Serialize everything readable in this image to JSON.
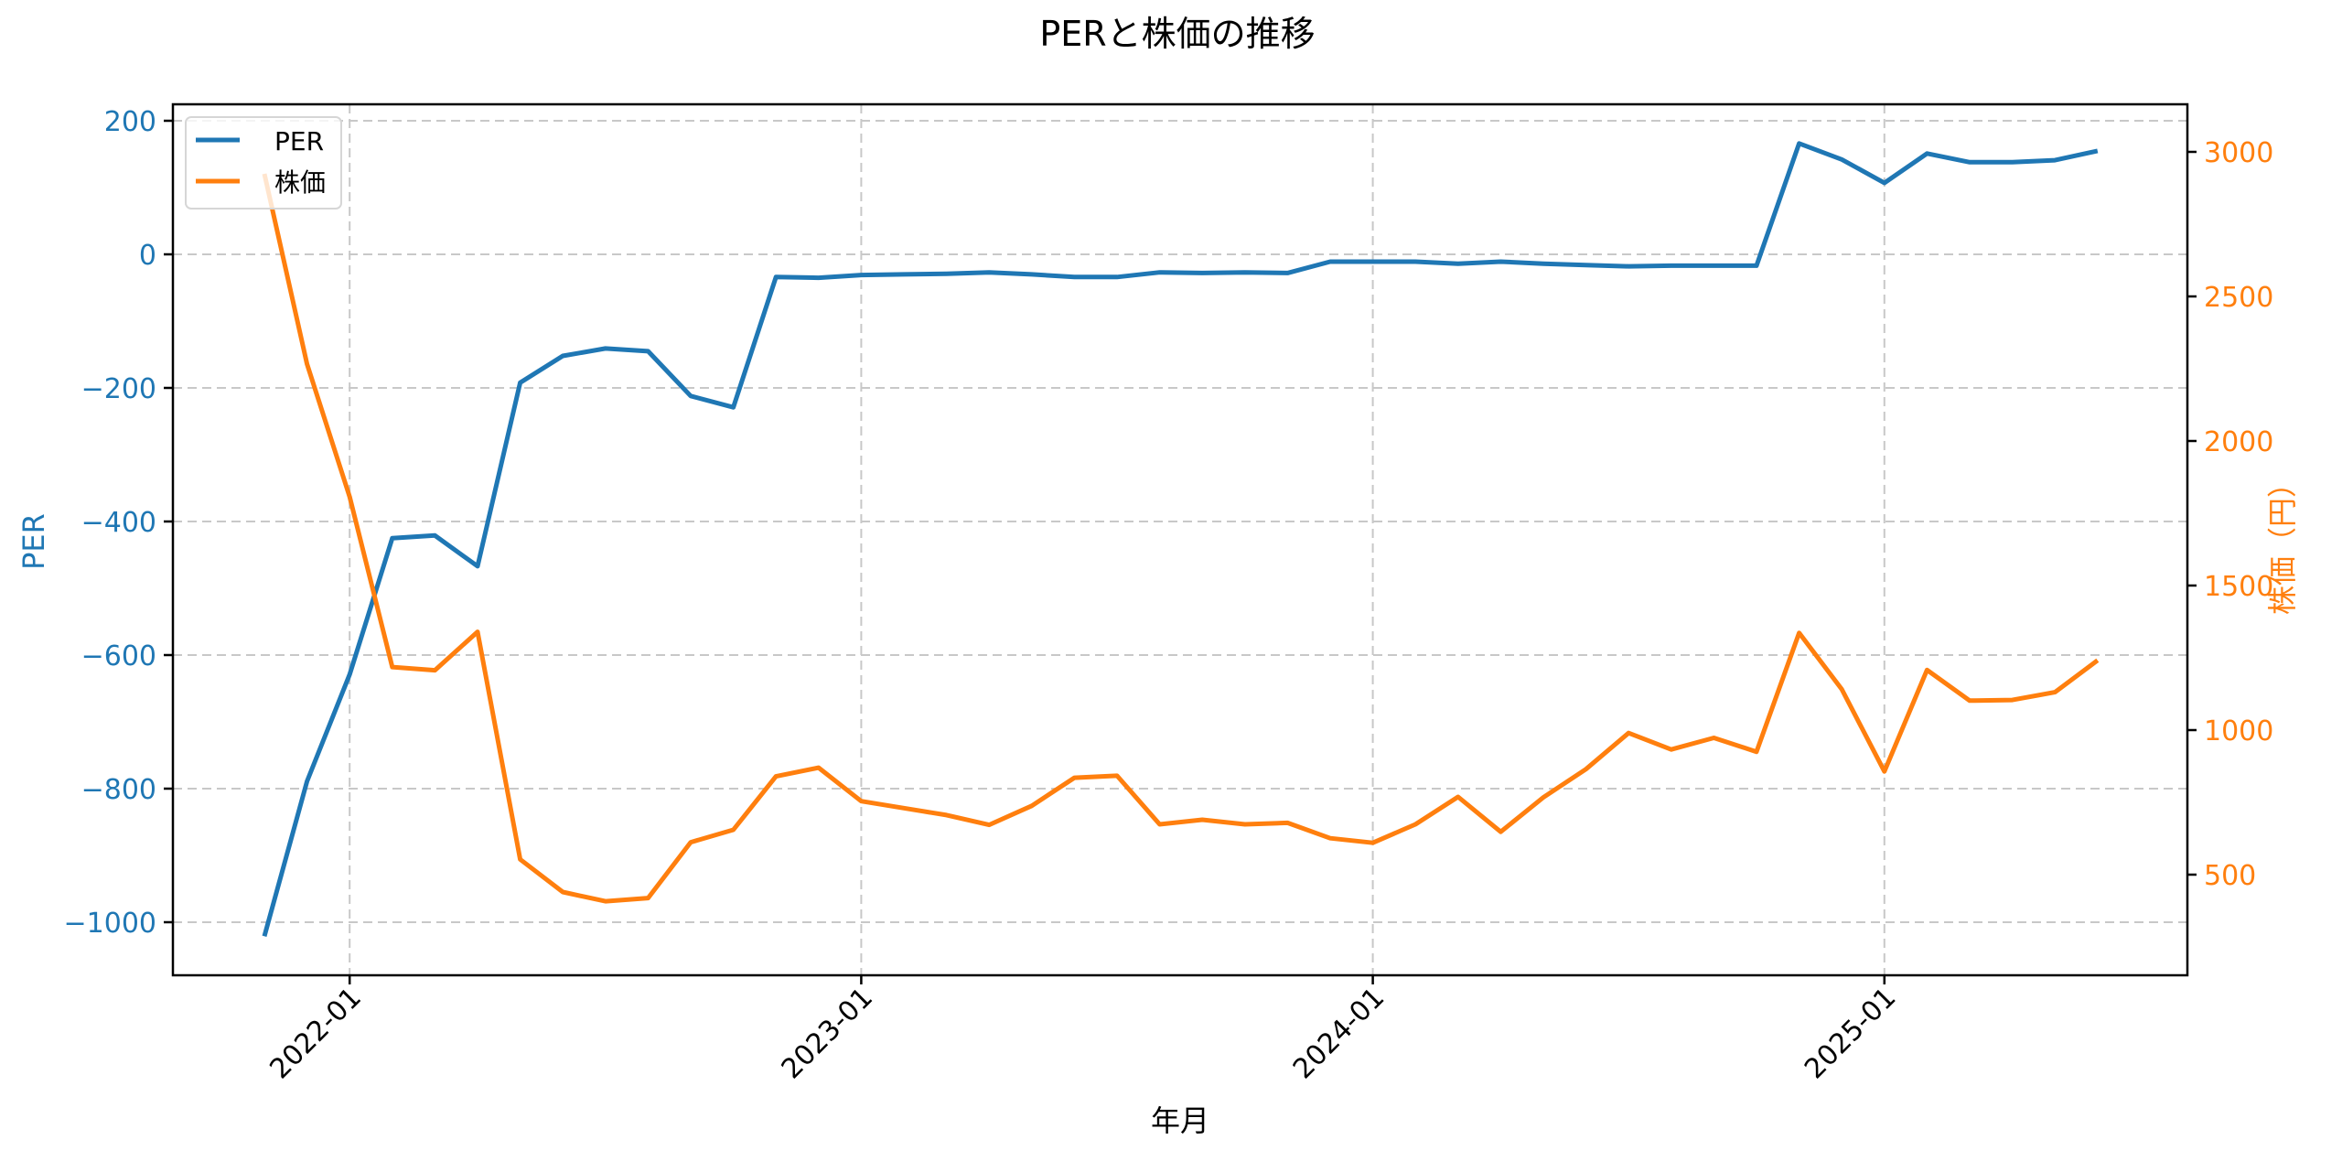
{
  "chart_data": {
    "type": "line",
    "title": "PERと株価の推移",
    "xlabel": "年月",
    "ylabel_left": "PER",
    "ylabel_right": "株価（円）",
    "x": [
      "2021-11",
      "2021-12",
      "2022-01",
      "2022-02",
      "2022-03",
      "2022-04",
      "2022-05",
      "2022-06",
      "2022-07",
      "2022-08",
      "2022-09",
      "2022-10",
      "2022-11",
      "2022-12",
      "2023-01",
      "2023-02",
      "2023-03",
      "2023-04",
      "2023-05",
      "2023-06",
      "2023-07",
      "2023-08",
      "2023-09",
      "2023-10",
      "2023-11",
      "2023-12",
      "2024-01",
      "2024-02",
      "2024-03",
      "2024-04",
      "2024-05",
      "2024-06",
      "2024-07",
      "2024-08",
      "2024-09",
      "2024-10",
      "2024-11",
      "2024-12",
      "2025-01",
      "2025-02",
      "2025-03",
      "2025-04",
      "2025-05",
      "2025-06"
    ],
    "series": [
      {
        "name": "PER",
        "axis": "left",
        "color": "#1f77b4",
        "values": [
          -1021,
          -789,
          -629,
          -425,
          -421,
          -467,
          -192,
          -152,
          -141,
          -145,
          -212,
          -229,
          -34,
          -35,
          -31,
          -30,
          -29,
          -27,
          -30,
          -34,
          -34,
          -27,
          -28,
          -27,
          -28,
          -11,
          -11,
          -11,
          -14,
          -11,
          -14,
          -16,
          -18,
          -17,
          -17,
          -17,
          166,
          142,
          107,
          151,
          138,
          138,
          141,
          155
        ]
      },
      {
        "name": "株価",
        "axis": "right",
        "color": "#ff7f0e",
        "values": [
          2924,
          2266,
          1807,
          1218,
          1207,
          1340,
          553,
          440,
          408,
          419,
          612,
          655,
          840,
          870,
          754,
          730,
          706,
          672,
          738,
          835,
          842,
          674,
          690,
          674,
          679,
          626,
          610,
          674,
          769,
          648,
          767,
          865,
          990,
          933,
          973,
          925,
          1336,
          1141,
          857,
          1208,
          1102,
          1104,
          1131,
          1241
        ]
      }
    ],
    "x_ticks": [
      "2022-01",
      "2023-01",
      "2024-01",
      "2025-01"
    ],
    "y_left_ticks": [
      200,
      0,
      -200,
      -400,
      -600,
      -800,
      -1000
    ],
    "y_left_tick_labels": [
      "200",
      "0",
      "−200",
      "−400",
      "−600",
      "−800",
      "−1000"
    ],
    "y_right_ticks": [
      3000,
      2500,
      2000,
      1500,
      1000,
      500
    ],
    "y_right_tick_labels": [
      "3000",
      "2500",
      "2000",
      "1500",
      "1000",
      "500"
    ],
    "ylim_left": [
      -1080,
      222
    ],
    "ylim_right": [
      152,
      3180
    ],
    "grid": true,
    "legend_position": "upper left"
  },
  "legend": {
    "items": [
      {
        "label": "PER",
        "color": "#1f77b4"
      },
      {
        "label": "株価",
        "color": "#ff7f0e"
      }
    ]
  }
}
